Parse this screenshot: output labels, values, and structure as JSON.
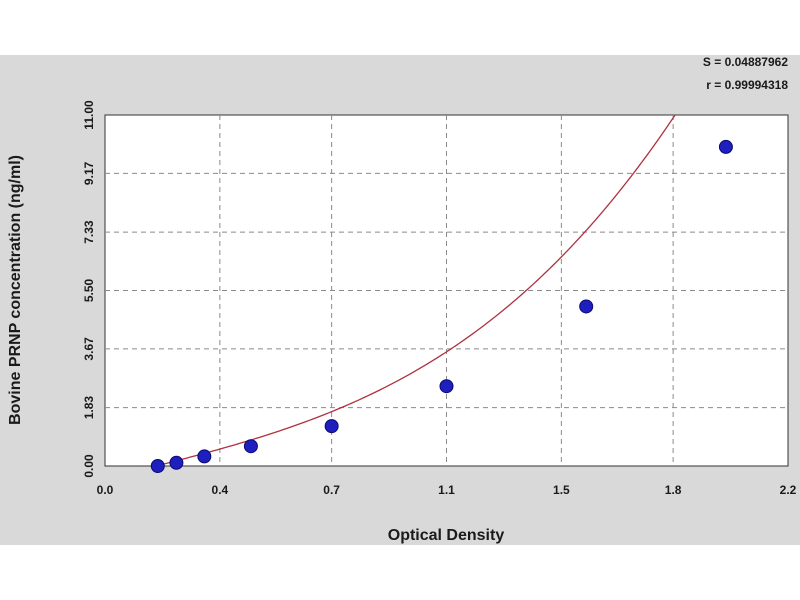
{
  "chart_data": {
    "type": "scatter",
    "xlabel": "Optical Density",
    "ylabel": "Bovine PRNP concentration (ng/ml)",
    "xlim": [
      0.0,
      2.2
    ],
    "ylim": [
      0.0,
      11.0
    ],
    "x_ticks": [
      0.0,
      0.37,
      0.73,
      1.1,
      1.47,
      1.83,
      2.2
    ],
    "x_tick_labels": [
      "0.0",
      "0.4",
      "0.7",
      "1.1",
      "1.5",
      "1.8",
      "2.2"
    ],
    "y_ticks": [
      0.0,
      1.83,
      3.67,
      5.5,
      7.33,
      9.17,
      11.0
    ],
    "y_tick_labels": [
      "0.00",
      "1.83",
      "3.67",
      "5.50",
      "7.33",
      "9.17",
      "11.00"
    ],
    "grid": true,
    "stats": [
      "S = 0.04887962",
      "r = 0.99994318"
    ],
    "series": [
      {
        "points": [
          {
            "x": 0.17,
            "y": 0.0
          },
          {
            "x": 0.23,
            "y": 0.1
          },
          {
            "x": 0.32,
            "y": 0.3
          },
          {
            "x": 0.47,
            "y": 0.62
          },
          {
            "x": 0.73,
            "y": 1.25
          },
          {
            "x": 1.1,
            "y": 2.5
          },
          {
            "x": 1.55,
            "y": 5.0
          },
          {
            "x": 2.0,
            "y": 10.0
          }
        ],
        "color": "#1f1fbf"
      }
    ],
    "fit_curve": {
      "x_range": [
        0.1,
        2.09
      ],
      "coefficients": [
        -0.42,
        2.6,
        -0.6,
        1.4
      ],
      "color": "#b03040"
    }
  }
}
